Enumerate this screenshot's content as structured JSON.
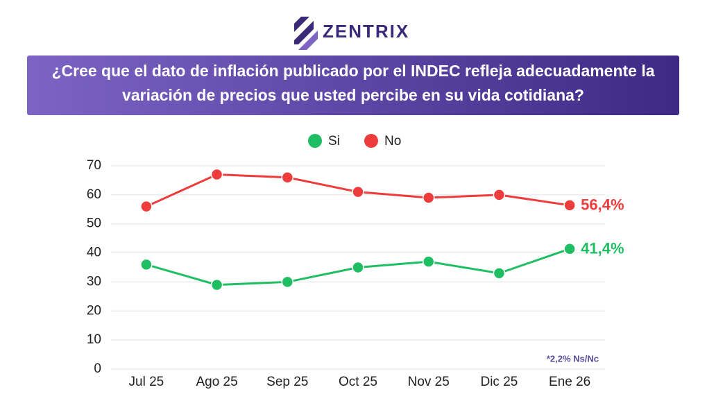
{
  "brand": "ZENTRIX",
  "chart_data": {
    "type": "line",
    "title": [
      "¿Cree que el dato de inflación publicado por el INDEC refleja adecuadamente la",
      "variación de precios que usted percibe en su vida cotidiana?"
    ],
    "categories": [
      "Jul 25",
      "Ago 25",
      "Sep 25",
      "Oct 25",
      "Nov 25",
      "Dic 25",
      "Ene 26"
    ],
    "series": [
      {
        "name": "Si",
        "color": "#1fbe63",
        "values": [
          36,
          29,
          30,
          35,
          37,
          33,
          41.4
        ],
        "value_labels": [
          null,
          null,
          null,
          null,
          null,
          null,
          "41,4%"
        ]
      },
      {
        "name": "No",
        "color": "#ee3b3b",
        "values": [
          56,
          67,
          66,
          61,
          59,
          60,
          56.4
        ],
        "value_labels": [
          null,
          null,
          null,
          null,
          null,
          null,
          "56,4%"
        ]
      }
    ],
    "ylim": [
      0,
      70
    ],
    "yticks": [
      0,
      10,
      20,
      30,
      40,
      50,
      60,
      70
    ],
    "grid": true,
    "legend": "top",
    "footnote": "*2,2% Ns/Nc"
  }
}
